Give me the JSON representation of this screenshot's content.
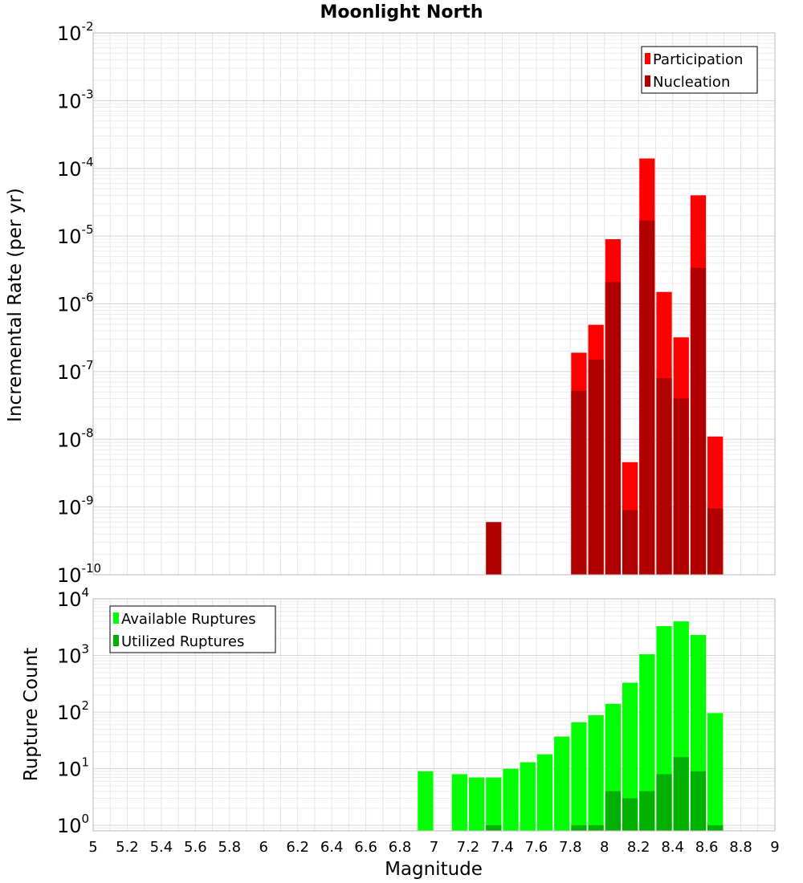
{
  "chart_data": [
    {
      "type": "bar",
      "title": "Moonlight North",
      "ylabel": "Incremental Rate (per yr)",
      "xlabel": "",
      "yscale": "log",
      "ylim": [
        1e-10,
        0.01
      ],
      "xlim": [
        5,
        9
      ],
      "bin_width": 0.1,
      "y_ticks": [
        {
          "base": "10",
          "exp": "-10",
          "value": 1e-10
        },
        {
          "base": "10",
          "exp": "-9",
          "value": 1e-09
        },
        {
          "base": "10",
          "exp": "-8",
          "value": 1e-08
        },
        {
          "base": "10",
          "exp": "-7",
          "value": 1e-07
        },
        {
          "base": "10",
          "exp": "-6",
          "value": 1e-06
        },
        {
          "base": "10",
          "exp": "-5",
          "value": 1e-05
        },
        {
          "base": "10",
          "exp": "-4",
          "value": 0.0001
        },
        {
          "base": "10",
          "exp": "-3",
          "value": 0.001
        },
        {
          "base": "10",
          "exp": "-2",
          "value": 0.01
        }
      ],
      "legend_position": "top-right",
      "grid": true,
      "series": [
        {
          "name": "Participation",
          "color": "#ff0000",
          "x": [
            7.85,
            7.95,
            8.05,
            8.15,
            8.25,
            8.35,
            8.45,
            8.55,
            8.65
          ],
          "values": [
            1.9e-07,
            4.9e-07,
            9e-06,
            4.6e-09,
            0.00014,
            1.5e-06,
            3.2e-07,
            4e-05,
            1.1e-08
          ]
        },
        {
          "name": "Nucleation",
          "color": "#b00000",
          "x": [
            7.35,
            7.85,
            7.95,
            8.05,
            8.15,
            8.25,
            8.35,
            8.45,
            8.55,
            8.65
          ],
          "values": [
            6e-10,
            5.2e-08,
            1.5e-07,
            2.1e-06,
            9e-10,
            1.7e-05,
            8e-08,
            4e-08,
            3.4e-06,
            9.5e-10
          ]
        }
      ]
    },
    {
      "type": "bar",
      "title": "",
      "ylabel": "Rupture Count",
      "xlabel": "Magnitude",
      "yscale": "log",
      "ylim": [
        0.8,
        10000
      ],
      "xlim": [
        5,
        9
      ],
      "bin_width": 0.1,
      "y_ticks": [
        {
          "base": "10",
          "exp": "0",
          "value": 1
        },
        {
          "base": "10",
          "exp": "1",
          "value": 10
        },
        {
          "base": "10",
          "exp": "2",
          "value": 100
        },
        {
          "base": "10",
          "exp": "3",
          "value": 1000
        },
        {
          "base": "10",
          "exp": "4",
          "value": 10000
        }
      ],
      "x_ticks": [
        "5",
        "5.2",
        "5.4",
        "5.6",
        "5.8",
        "6",
        "6.2",
        "6.4",
        "6.6",
        "6.8",
        "7",
        "7.2",
        "7.4",
        "7.6",
        "7.8",
        "8",
        "8.2",
        "8.4",
        "8.6",
        "8.8",
        "9"
      ],
      "legend_position": "top-left",
      "grid": true,
      "series": [
        {
          "name": "Available Ruptures",
          "color": "#00ff00",
          "x": [
            6.95,
            7.15,
            7.25,
            7.35,
            7.45,
            7.55,
            7.65,
            7.75,
            7.85,
            7.95,
            8.05,
            8.15,
            8.25,
            8.35,
            8.45,
            8.55,
            8.65
          ],
          "values": [
            9,
            8,
            7,
            7,
            10,
            13,
            18,
            37,
            66,
            88,
            140,
            330,
            1050,
            3300,
            4000,
            2300,
            96
          ]
        },
        {
          "name": "Utilized Ruptures",
          "color": "#00b000",
          "x": [
            7.35,
            7.85,
            7.95,
            8.05,
            8.15,
            8.25,
            8.35,
            8.45,
            8.55,
            8.65
          ],
          "values": [
            1,
            1,
            1,
            4,
            3,
            4,
            8,
            16,
            9,
            1
          ]
        }
      ]
    }
  ]
}
